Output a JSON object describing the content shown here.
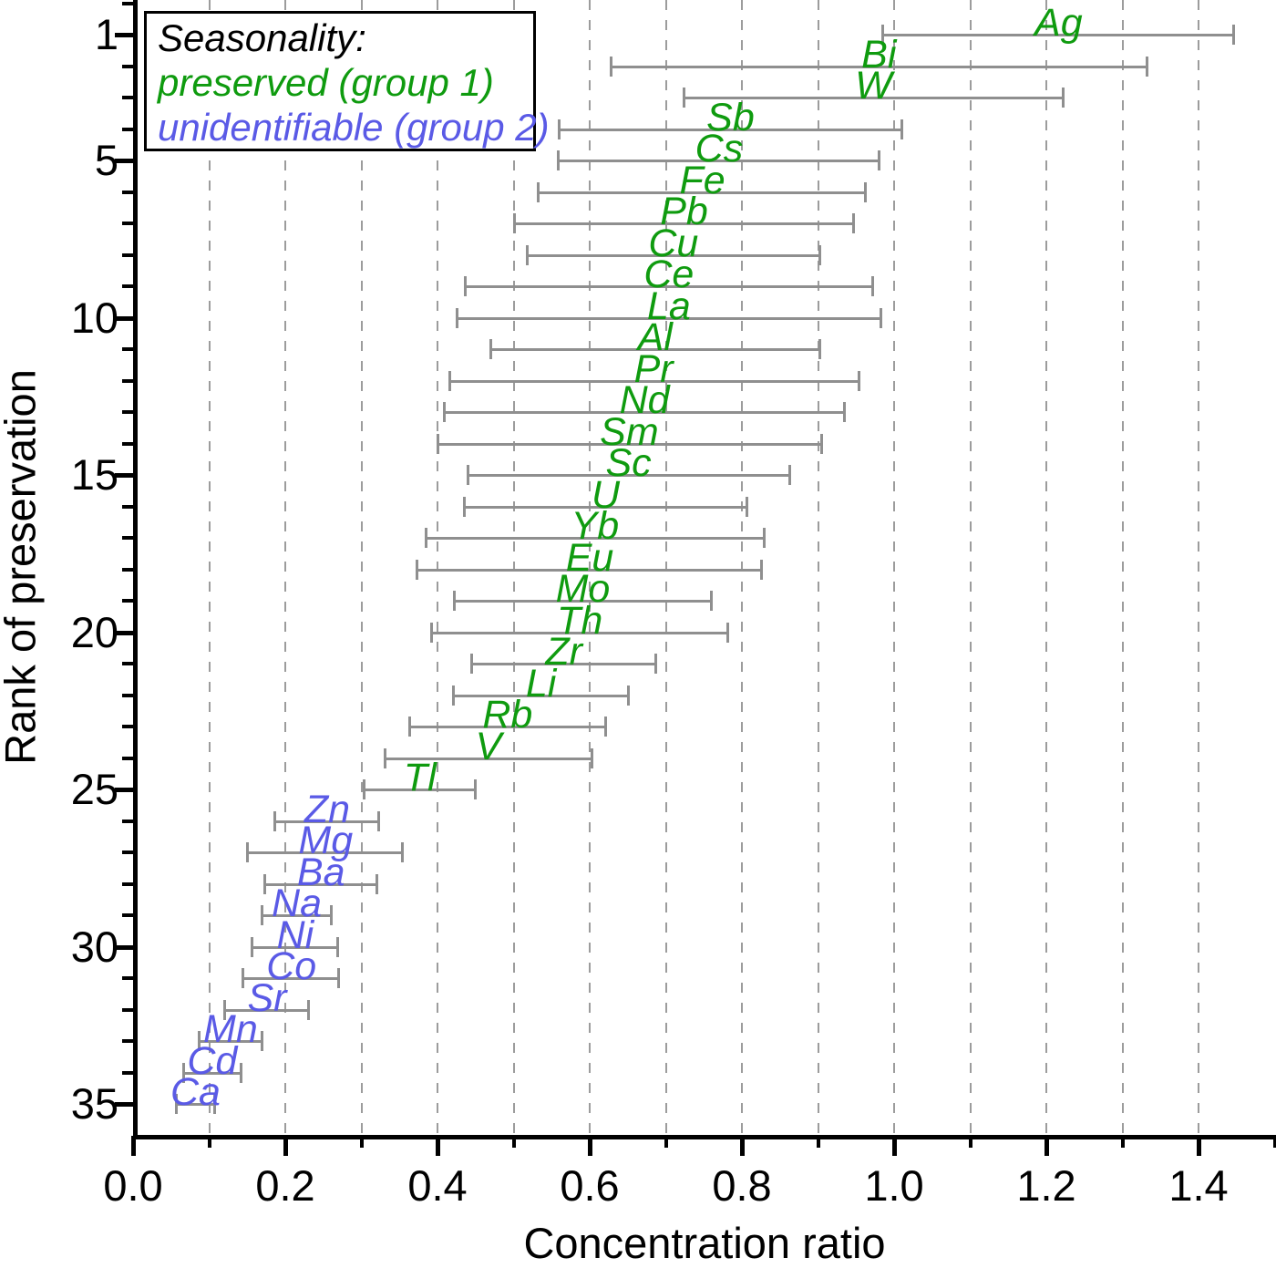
{
  "legend": {
    "title": "Seasonality:",
    "items": [
      {
        "label": "preserved (group 1)",
        "group": 1,
        "color": "#0f9b0f"
      },
      {
        "label": "unidentifiable (group 2)",
        "group": 2,
        "color": "#5a5ae6"
      }
    ]
  },
  "axes": {
    "x": {
      "title": "Concentration ratio",
      "tick_labels": [
        "0.0",
        "0.2",
        "0.4",
        "0.6",
        "0.8",
        "1.0",
        "1.2",
        "1.4"
      ],
      "tick_values": [
        0.0,
        0.2,
        0.4,
        0.6,
        0.8,
        1.0,
        1.2,
        1.4
      ],
      "minor_tick_values": [
        0.1,
        0.3,
        0.5,
        0.7,
        0.9,
        1.1,
        1.3,
        1.5
      ],
      "range_shown": [
        0.0,
        1.5
      ]
    },
    "y": {
      "title": "Rank of preservation",
      "tick_labels": [
        "1",
        "5",
        "10",
        "15",
        "20",
        "25",
        "30",
        "35"
      ],
      "tick_values": [
        1,
        5,
        10,
        15,
        20,
        25,
        30,
        35
      ],
      "minor_step": 1,
      "range_shown": [
        0,
        36
      ]
    }
  },
  "colors": {
    "group1": "#0f9b0f",
    "group2": "#5a5ae6",
    "error_bar": "#8f8f8f",
    "grid": "#9c9c9c",
    "axis": "#000000",
    "background": "#ffffff"
  },
  "chart_data": {
    "type": "scatter",
    "subtype": "horizontal-error-bar-ranking",
    "title": "",
    "xlabel": "Concentration ratio",
    "ylabel": "Rank of preservation",
    "xlim": [
      0.0,
      1.5
    ],
    "ylim": [
      36,
      0
    ],
    "grid": "vertical dashed gridlines every 0.1",
    "legend_position": "top-left",
    "groups": {
      "1": "preserved (group 1)",
      "2": "unidentifiable (group 2)"
    },
    "points": [
      {
        "element": "Ag",
        "rank": 1,
        "group": 1,
        "ci_low": 0.985,
        "ci_high": 1.447,
        "center": 1.216
      },
      {
        "element": "Bi",
        "rank": 2,
        "group": 1,
        "ci_low": 0.627,
        "ci_high": 1.333,
        "center": 0.98
      },
      {
        "element": "W",
        "rank": 3,
        "group": 1,
        "ci_low": 0.723,
        "ci_high": 1.223,
        "center": 0.973
      },
      {
        "element": "Sb",
        "rank": 4,
        "group": 1,
        "ci_low": 0.559,
        "ci_high": 1.011,
        "center": 0.785
      },
      {
        "element": "Cs",
        "rank": 5,
        "group": 1,
        "ci_low": 0.558,
        "ci_high": 0.981,
        "center": 0.77
      },
      {
        "element": "Fe",
        "rank": 6,
        "group": 1,
        "ci_low": 0.532,
        "ci_high": 0.963,
        "center": 0.748
      },
      {
        "element": "Pb",
        "rank": 7,
        "group": 1,
        "ci_low": 0.501,
        "ci_high": 0.947,
        "center": 0.724
      },
      {
        "element": "Cu",
        "rank": 8,
        "group": 1,
        "ci_low": 0.517,
        "ci_high": 0.903,
        "center": 0.71
      },
      {
        "element": "Ce",
        "rank": 9,
        "group": 1,
        "ci_low": 0.436,
        "ci_high": 0.973,
        "center": 0.704
      },
      {
        "element": "La",
        "rank": 10,
        "group": 1,
        "ci_low": 0.425,
        "ci_high": 0.983,
        "center": 0.704
      },
      {
        "element": "Al",
        "rank": 11,
        "group": 1,
        "ci_low": 0.47,
        "ci_high": 0.903,
        "center": 0.686
      },
      {
        "element": "Pr",
        "rank": 12,
        "group": 1,
        "ci_low": 0.415,
        "ci_high": 0.954,
        "center": 0.684
      },
      {
        "element": "Nd",
        "rank": 13,
        "group": 1,
        "ci_low": 0.408,
        "ci_high": 0.935,
        "center": 0.672
      },
      {
        "element": "Sm",
        "rank": 14,
        "group": 1,
        "ci_low": 0.4,
        "ci_high": 0.905,
        "center": 0.652
      },
      {
        "element": "Sc",
        "rank": 15,
        "group": 1,
        "ci_low": 0.44,
        "ci_high": 0.863,
        "center": 0.651
      },
      {
        "element": "U",
        "rank": 16,
        "group": 1,
        "ci_low": 0.435,
        "ci_high": 0.807,
        "center": 0.621
      },
      {
        "element": "Yb",
        "rank": 17,
        "group": 1,
        "ci_low": 0.385,
        "ci_high": 0.83,
        "center": 0.607
      },
      {
        "element": "Eu",
        "rank": 18,
        "group": 1,
        "ci_low": 0.373,
        "ci_high": 0.826,
        "center": 0.6
      },
      {
        "element": "Mo",
        "rank": 19,
        "group": 1,
        "ci_low": 0.422,
        "ci_high": 0.76,
        "center": 0.591
      },
      {
        "element": "Th",
        "rank": 20,
        "group": 1,
        "ci_low": 0.392,
        "ci_high": 0.782,
        "center": 0.587
      },
      {
        "element": "Zr",
        "rank": 21,
        "group": 1,
        "ci_low": 0.444,
        "ci_high": 0.687,
        "center": 0.566
      },
      {
        "element": "Li",
        "rank": 22,
        "group": 1,
        "ci_low": 0.42,
        "ci_high": 0.651,
        "center": 0.536
      },
      {
        "element": "Rb",
        "rank": 23,
        "group": 1,
        "ci_low": 0.363,
        "ci_high": 0.621,
        "center": 0.492
      },
      {
        "element": "V",
        "rank": 24,
        "group": 1,
        "ci_low": 0.331,
        "ci_high": 0.603,
        "center": 0.467
      },
      {
        "element": "Tl",
        "rank": 25,
        "group": 1,
        "ci_low": 0.303,
        "ci_high": 0.45,
        "center": 0.377
      },
      {
        "element": "Zn",
        "rank": 26,
        "group": 2,
        "ci_low": 0.186,
        "ci_high": 0.323,
        "center": 0.255
      },
      {
        "element": "Mg",
        "rank": 27,
        "group": 2,
        "ci_low": 0.15,
        "ci_high": 0.355,
        "center": 0.253
      },
      {
        "element": "Ba",
        "rank": 28,
        "group": 2,
        "ci_low": 0.172,
        "ci_high": 0.321,
        "center": 0.247
      },
      {
        "element": "Na",
        "rank": 29,
        "group": 2,
        "ci_low": 0.169,
        "ci_high": 0.261,
        "center": 0.215
      },
      {
        "element": "Ni",
        "rank": 30,
        "group": 2,
        "ci_low": 0.156,
        "ci_high": 0.269,
        "center": 0.213
      },
      {
        "element": "Co",
        "rank": 31,
        "group": 2,
        "ci_low": 0.144,
        "ci_high": 0.271,
        "center": 0.208
      },
      {
        "element": "Sr",
        "rank": 32,
        "group": 2,
        "ci_low": 0.12,
        "ci_high": 0.231,
        "center": 0.176
      },
      {
        "element": "Mn",
        "rank": 33,
        "group": 2,
        "ci_low": 0.086,
        "ci_high": 0.17,
        "center": 0.128
      },
      {
        "element": "Cd",
        "rank": 34,
        "group": 2,
        "ci_low": 0.066,
        "ci_high": 0.142,
        "center": 0.104
      },
      {
        "element": "Ca",
        "rank": 35,
        "group": 2,
        "ci_low": 0.056,
        "ci_high": 0.108,
        "center": 0.082
      }
    ]
  }
}
